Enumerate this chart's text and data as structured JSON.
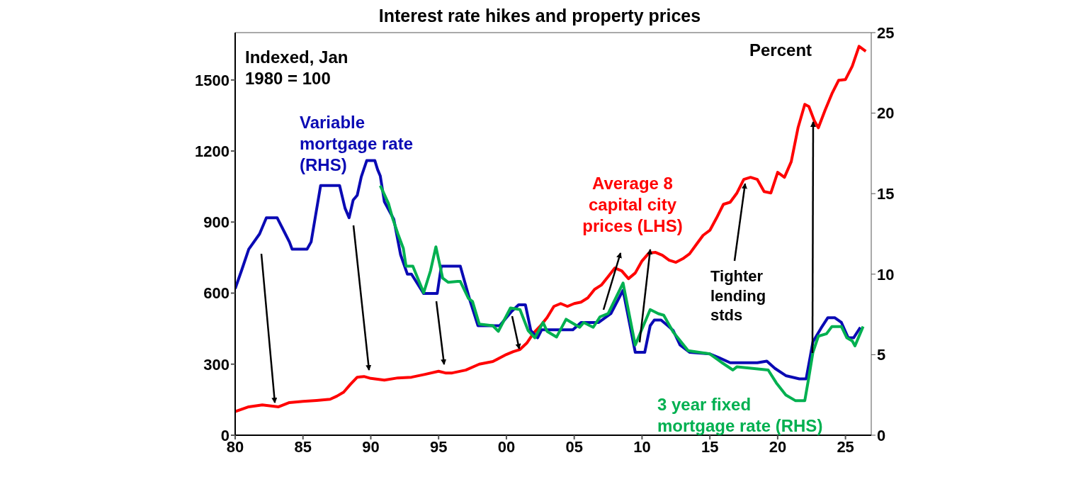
{
  "chart_data": {
    "type": "line",
    "title": "Interest rate hikes and property prices",
    "xlim": [
      1980,
      2026.9
    ],
    "xticks": [
      {
        "value": 1980,
        "label": "80"
      },
      {
        "value": 1985,
        "label": "85"
      },
      {
        "value": 1990,
        "label": "90"
      },
      {
        "value": 1995,
        "label": "95"
      },
      {
        "value": 2000,
        "label": "00"
      },
      {
        "value": 2005,
        "label": "05"
      },
      {
        "value": 2010,
        "label": "10"
      },
      {
        "value": 2015,
        "label": "15"
      },
      {
        "value": 2020,
        "label": "20"
      },
      {
        "value": 2025,
        "label": "25"
      }
    ],
    "ylim": [
      0,
      1700
    ],
    "yticks": [
      0,
      300,
      600,
      900,
      1200,
      1500
    ],
    "y2lim": [
      0,
      25
    ],
    "y2ticks": [
      0,
      5,
      10,
      15,
      20,
      25
    ],
    "marker": "none",
    "line_style": "solid",
    "annotations": [
      "Indexed, Jan 1980 = 100",
      "Percent",
      {
        "text": "Tighter lending stds",
        "x": 2017.6,
        "y": 1080
      }
    ],
    "series": [
      {
        "name": "Average 8 capital city prices (LHS)",
        "color": "#ff0000",
        "x": [
          1980,
          1981,
          1982,
          1983.2,
          1984,
          1985,
          1986,
          1987,
          1987.5,
          1988,
          1988.5,
          1989,
          1989.5,
          1990,
          1991,
          1992,
          1993,
          1994,
          1995,
          1995.5,
          1996,
          1997,
          1998,
          1999,
          2000,
          2000.5,
          2001,
          2001.5,
          2002,
          2002.5,
          2003,
          2003.5,
          2004,
          2004.5,
          2005,
          2005.5,
          2006,
          2006.5,
          2007,
          2007.5,
          2008,
          2008.5,
          2009,
          2009.5,
          2010,
          2010.5,
          2011,
          2011.5,
          2012,
          2012.5,
          2013,
          2013.5,
          2014,
          2014.5,
          2015,
          2015.5,
          2016,
          2016.5,
          2017,
          2017.5,
          2018,
          2018.5,
          2019,
          2019.5,
          2020,
          2020.5,
          2021,
          2021.5,
          2022,
          2022.3,
          2022.7,
          2023,
          2023.5,
          2024,
          2024.5,
          2025,
          2025.5,
          2026,
          2026.5
        ],
        "values": [
          100,
          120,
          128,
          120,
          138,
          143,
          147,
          152,
          165,
          182,
          215,
          245,
          248,
          240,
          233,
          242,
          245,
          257,
          270,
          263,
          263,
          275,
          300,
          311,
          341,
          353,
          362,
          389,
          431,
          461,
          497,
          544,
          556,
          544,
          556,
          562,
          580,
          616,
          634,
          670,
          706,
          694,
          661,
          685,
          736,
          769,
          772,
          760,
          739,
          730,
          745,
          766,
          805,
          844,
          865,
          918,
          975,
          984,
          1023,
          1080,
          1089,
          1080,
          1029,
          1023,
          1110,
          1089,
          1155,
          1298,
          1397,
          1388,
          1328,
          1298,
          1373,
          1442,
          1499,
          1502,
          1558,
          1642,
          1621
        ]
      },
      {
        "name": "Variable mortgage rate (RHS)",
        "color": "#0a0ab4",
        "axis": "y2",
        "x": [
          1980,
          1980.5,
          1981,
          1981.8,
          1982.3,
          1983.1,
          1983.7,
          1984,
          1984.2,
          1985.3,
          1985.6,
          1985.9,
          1986.3,
          1987.7,
          1988.1,
          1988.4,
          1988.7,
          1989,
          1989.3,
          1989.7,
          1990.3,
          1990.5,
          1990.7,
          1991,
          1991.7,
          1992.2,
          1992.7,
          1993,
          1993.9,
          1994.9,
          1995.2,
          1996.6,
          1997.3,
          1997.9,
          1999.5,
          2000.4,
          2000.9,
          2001.4,
          2001.8,
          2002.3,
          2002.6,
          2004.9,
          2005.5,
          2006.8,
          2007.7,
          2008.6,
          2009.5,
          2010.2,
          2010.6,
          2010.9,
          2011.4,
          2011.9,
          2012.3,
          2012.8,
          2013.5,
          2015,
          2015.7,
          2016.5,
          2018.5,
          2019.2,
          2019.8,
          2020.6,
          2021.6,
          2022.1,
          2022.6,
          2023.2,
          2023.7,
          2024.2,
          2024.7,
          2025.2,
          2025.6,
          2026.1
        ],
        "values": [
          9.1,
          10.3,
          11.55,
          12.5,
          13.5,
          13.5,
          12.5,
          12.0,
          11.55,
          11.55,
          12.0,
          13.5,
          15.5,
          15.5,
          14.1,
          13.5,
          14.6,
          14.9,
          16.05,
          17.05,
          17.05,
          16.5,
          16.1,
          14.5,
          13.4,
          11.2,
          10.0,
          10.0,
          8.8,
          8.8,
          10.5,
          10.5,
          8.4,
          6.8,
          6.8,
          7.7,
          8.1,
          8.1,
          6.5,
          6.05,
          6.55,
          6.55,
          7.0,
          7.0,
          7.55,
          9.0,
          5.15,
          5.15,
          6.8,
          7.15,
          7.15,
          6.8,
          6.5,
          5.6,
          5.15,
          5.05,
          4.8,
          4.5,
          4.5,
          4.6,
          4.15,
          3.7,
          3.5,
          3.5,
          5.8,
          6.65,
          7.3,
          7.3,
          7.0,
          6.05,
          6.05,
          6.7
        ]
      },
      {
        "name": "3 year fixed mortgage rate (RHS)",
        "color": "#00b050",
        "axis": "y2",
        "x": [
          1990.7,
          1991.3,
          1991.6,
          1992,
          1992.4,
          1992.6,
          1993.1,
          1993.9,
          1994.4,
          1994.8,
          1995.3,
          1995.7,
          1996.4,
          1996.6,
          1997.2,
          1997.5,
          1998,
          1999,
          1999.4,
          2000.3,
          2001,
          2001.6,
          2002.1,
          2002.7,
          2003,
          2003.7,
          2004.4,
          2005.4,
          2005.7,
          2006.4,
          2006.9,
          2007.5,
          2008.6,
          2009.5,
          2010.6,
          2011.2,
          2011.6,
          2012.3,
          2013.4,
          2015,
          2015.9,
          2016.7,
          2017,
          2019.3,
          2019.9,
          2020.6,
          2021.3,
          2022,
          2022.3,
          2022.6,
          2023,
          2023.6,
          2024,
          2024.7,
          2025.1,
          2025.5,
          2025.7,
          2026.3
        ],
        "values": [
          15.5,
          14.4,
          13.5,
          12.5,
          11.6,
          10.5,
          10.5,
          8.85,
          10.2,
          11.7,
          9.75,
          9.5,
          9.55,
          9.55,
          8.5,
          8.3,
          6.9,
          6.8,
          6.45,
          7.9,
          7.8,
          6.5,
          6.05,
          7.0,
          6.45,
          6.1,
          7.2,
          6.7,
          7.0,
          6.7,
          7.35,
          7.55,
          9.45,
          5.6,
          7.8,
          7.55,
          7.45,
          6.4,
          5.25,
          5.05,
          4.5,
          4.05,
          4.25,
          4.05,
          3.25,
          2.5,
          2.15,
          2.15,
          3.6,
          5.15,
          6.15,
          6.3,
          6.75,
          6.75,
          6.05,
          5.85,
          5.55,
          6.75
        ]
      }
    ]
  }
}
